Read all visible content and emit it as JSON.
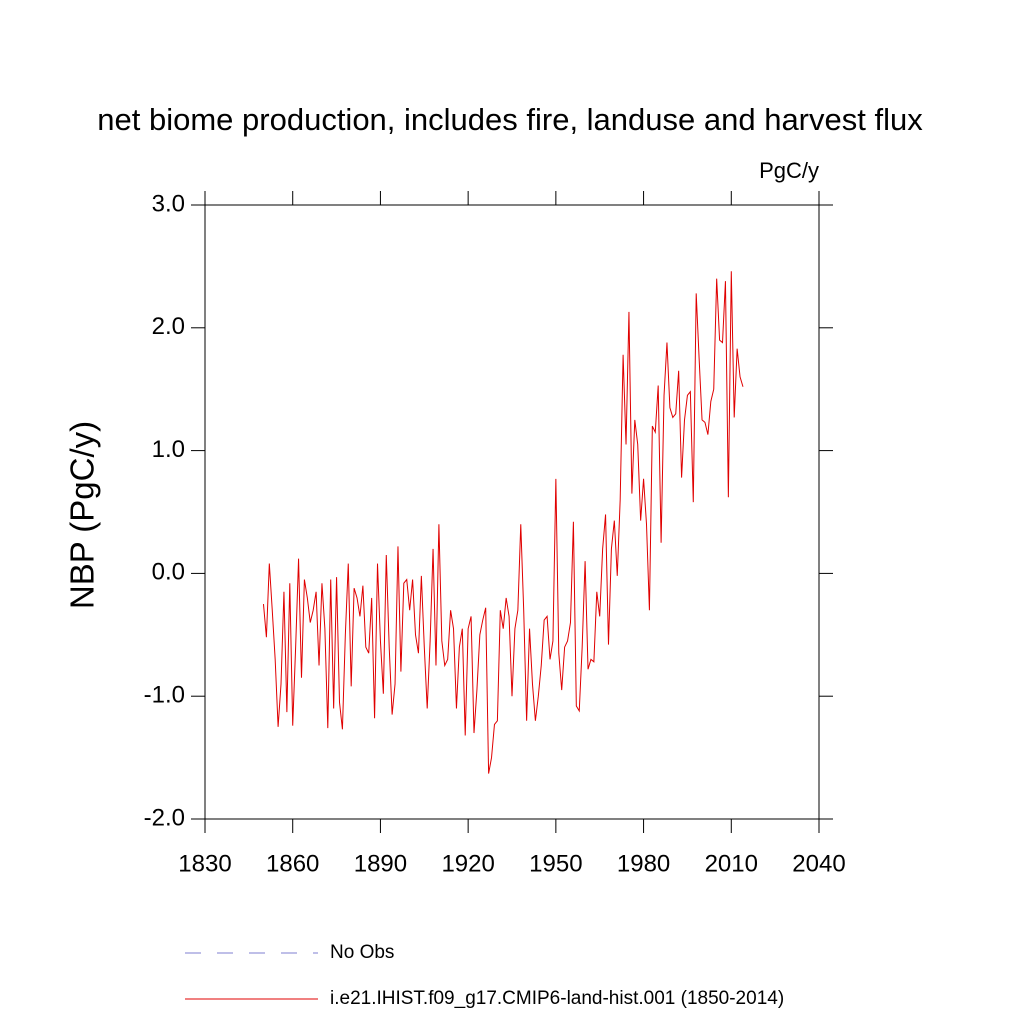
{
  "chart_data": {
    "type": "line",
    "title": "net biome production, includes fire, landuse and harvest flux",
    "units": "PgC/y",
    "y_label": "NBP  (PgC/y)",
    "xlim": [
      1830,
      2040
    ],
    "xticks": [
      1830,
      1860,
      1890,
      1920,
      1950,
      1980,
      2010,
      2040
    ],
    "ylim": [
      -2,
      3
    ],
    "yticks": [
      {
        "value": -2,
        "label": "-2.0"
      },
      {
        "value": -1,
        "label": "-1.0"
      },
      {
        "value": 0,
        "label": "0.0"
      },
      {
        "value": 1,
        "label": "1.0"
      },
      {
        "value": 2,
        "label": "2.0"
      },
      {
        "value": 3,
        "label": "3.0"
      }
    ],
    "series": [
      {
        "name": "No Obs",
        "color": "#7f7fd0",
        "dashed": true,
        "x": [],
        "values": []
      },
      {
        "name": "i.e21.IHIST.f09_g17.CMIP6-land-hist.001 (1850-2014)",
        "color": "#e00000",
        "dashed": false,
        "x": [
          1850,
          1851,
          1852,
          1853,
          1854,
          1855,
          1856,
          1857,
          1858,
          1859,
          1860,
          1861,
          1862,
          1863,
          1864,
          1865,
          1866,
          1867,
          1868,
          1869,
          1870,
          1871,
          1872,
          1873,
          1874,
          1875,
          1876,
          1877,
          1878,
          1879,
          1880,
          1881,
          1882,
          1883,
          1884,
          1885,
          1886,
          1887,
          1888,
          1889,
          1890,
          1891,
          1892,
          1893,
          1894,
          1895,
          1896,
          1897,
          1898,
          1899,
          1900,
          1901,
          1902,
          1903,
          1904,
          1905,
          1906,
          1907,
          1908,
          1909,
          1910,
          1911,
          1912,
          1913,
          1914,
          1915,
          1916,
          1917,
          1918,
          1919,
          1920,
          1921,
          1922,
          1923,
          1924,
          1925,
          1926,
          1927,
          1928,
          1929,
          1930,
          1931,
          1932,
          1933,
          1934,
          1935,
          1936,
          1937,
          1938,
          1939,
          1940,
          1941,
          1942,
          1943,
          1944,
          1945,
          1946,
          1947,
          1948,
          1949,
          1950,
          1951,
          1952,
          1953,
          1954,
          1955,
          1956,
          1957,
          1958,
          1959,
          1960,
          1961,
          1962,
          1963,
          1964,
          1965,
          1966,
          1967,
          1968,
          1969,
          1970,
          1971,
          1972,
          1973,
          1974,
          1975,
          1976,
          1977,
          1978,
          1979,
          1980,
          1981,
          1982,
          1983,
          1984,
          1985,
          1986,
          1987,
          1988,
          1989,
          1990,
          1991,
          1992,
          1993,
          1994,
          1995,
          1996,
          1997,
          1998,
          1999,
          2000,
          2001,
          2002,
          2003,
          2004,
          2005,
          2006,
          2007,
          2008,
          2009,
          2010,
          2011,
          2012,
          2013,
          2014
        ],
        "values": [
          -0.25,
          -0.52,
          0.08,
          -0.3,
          -0.7,
          -1.25,
          -0.9,
          -0.15,
          -1.13,
          -0.08,
          -1.24,
          -0.6,
          0.12,
          -0.85,
          -0.05,
          -0.2,
          -0.4,
          -0.3,
          -0.15,
          -0.75,
          -0.08,
          -0.45,
          -1.26,
          -0.05,
          -1.1,
          -0.03,
          -1.05,
          -1.27,
          -0.5,
          0.08,
          -0.92,
          -0.12,
          -0.2,
          -0.35,
          -0.1,
          -0.6,
          -0.65,
          -0.2,
          -1.18,
          0.08,
          -0.55,
          -0.98,
          0.15,
          -0.6,
          -1.15,
          -0.9,
          0.22,
          -0.8,
          -0.08,
          -0.05,
          -0.3,
          -0.05,
          -0.5,
          -0.65,
          -0.02,
          -0.6,
          -1.1,
          -0.55,
          0.2,
          -0.75,
          0.4,
          -0.55,
          -0.75,
          -0.7,
          -0.3,
          -0.45,
          -1.1,
          -0.6,
          -0.45,
          -1.32,
          -0.45,
          -0.35,
          -1.3,
          -0.95,
          -0.5,
          -0.38,
          -0.28,
          -1.63,
          -1.5,
          -1.23,
          -1.2,
          -0.3,
          -0.45,
          -0.2,
          -0.35,
          -1.0,
          -0.45,
          -0.3,
          0.4,
          -0.3,
          -1.2,
          -0.45,
          -0.9,
          -1.2,
          -1.0,
          -0.75,
          -0.38,
          -0.35,
          -0.7,
          -0.55,
          0.77,
          -0.65,
          -0.95,
          -0.6,
          -0.55,
          -0.4,
          0.42,
          -1.08,
          -1.12,
          -0.6,
          0.1,
          -0.78,
          -0.7,
          -0.72,
          -0.15,
          -0.35,
          0.2,
          0.48,
          -0.58,
          0.2,
          0.43,
          -0.02,
          0.6,
          1.78,
          1.05,
          2.13,
          0.65,
          1.25,
          1.05,
          0.43,
          0.77,
          0.4,
          -0.3,
          1.2,
          1.15,
          1.53,
          0.25,
          1.45,
          1.88,
          1.35,
          1.27,
          1.3,
          1.65,
          0.78,
          1.25,
          1.45,
          1.48,
          0.58,
          2.28,
          1.75,
          1.25,
          1.23,
          1.13,
          1.4,
          1.5,
          2.4,
          1.9,
          1.88,
          2.38,
          0.62,
          2.46,
          1.27,
          1.83,
          1.6,
          1.52
        ]
      }
    ]
  }
}
